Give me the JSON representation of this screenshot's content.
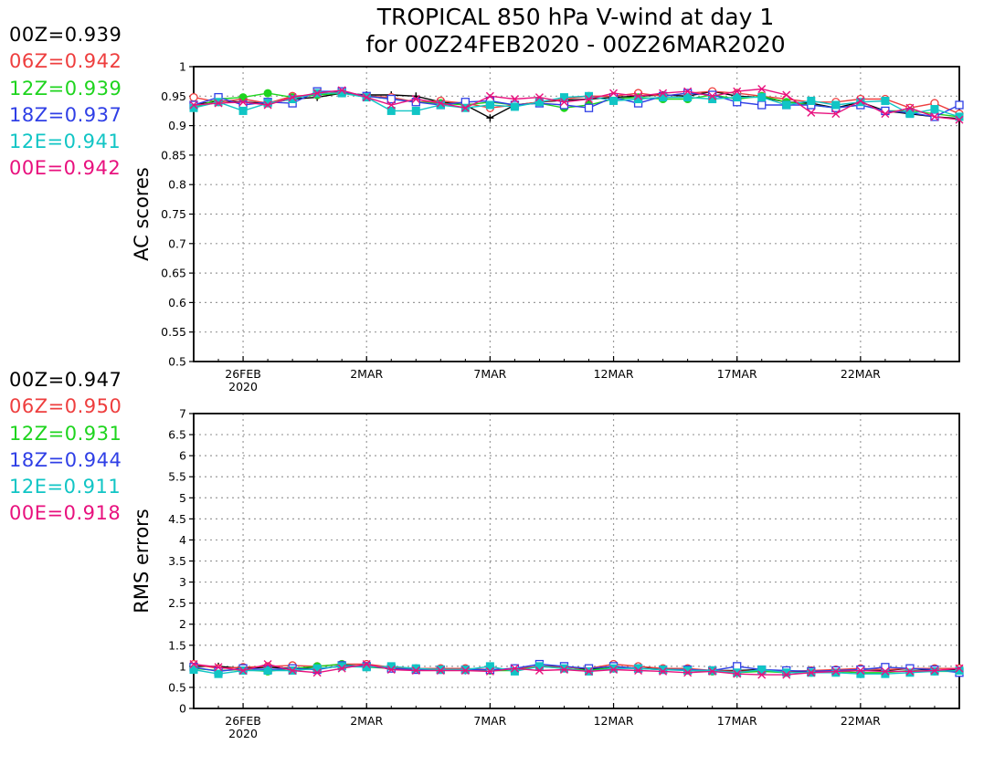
{
  "chart_data": [
    {
      "type": "line",
      "title": "TROPICAL 850 hPa V-wind at day 1",
      "subtitle": "for 00Z24FEB2020 - 00Z26MAR2020",
      "xlabel": "",
      "ylabel": "AC scores",
      "ylim": [
        0.5,
        1
      ],
      "yticks": [
        "0.5",
        "0.55",
        "0.6",
        "0.65",
        "0.7",
        "0.75",
        "0.8",
        "0.85",
        "0.9",
        "0.95",
        "1"
      ],
      "xlim": [
        "2020-02-24",
        "2020-03-26"
      ],
      "xticks": [
        {
          "date": "2020-02-26",
          "label": "26FEB",
          "sublabel": "2020"
        },
        {
          "date": "2020-03-02",
          "label": "2MAR",
          "sublabel": ""
        },
        {
          "date": "2020-03-07",
          "label": "7MAR",
          "sublabel": ""
        },
        {
          "date": "2020-03-12",
          "label": "12MAR",
          "sublabel": ""
        },
        {
          "date": "2020-03-17",
          "label": "17MAR",
          "sublabel": ""
        },
        {
          "date": "2020-03-22",
          "label": "22MAR",
          "sublabel": ""
        }
      ],
      "grid": true,
      "x": [
        "2020-02-24",
        "2020-02-25",
        "2020-02-26",
        "2020-02-27",
        "2020-02-28",
        "2020-02-29",
        "2020-03-01",
        "2020-03-02",
        "2020-03-03",
        "2020-03-04",
        "2020-03-05",
        "2020-03-06",
        "2020-03-07",
        "2020-03-08",
        "2020-03-09",
        "2020-03-10",
        "2020-03-11",
        "2020-03-12",
        "2020-03-13",
        "2020-03-14",
        "2020-03-15",
        "2020-03-16",
        "2020-03-17",
        "2020-03-18",
        "2020-03-19",
        "2020-03-20",
        "2020-03-21",
        "2020-03-22",
        "2020-03-23",
        "2020-03-24",
        "2020-03-25",
        "2020-03-26"
      ],
      "legend": [
        {
          "label": "00Z=0.939",
          "color": "#000000"
        },
        {
          "label": "06Z=0.942",
          "color": "#ee3e3e"
        },
        {
          "label": "12Z=0.939",
          "color": "#1ed41e"
        },
        {
          "label": "18Z=0.937",
          "color": "#2f3fe6"
        },
        {
          "label": "12E=0.941",
          "color": "#11c5c5"
        },
        {
          "label": "00E=0.942",
          "color": "#e8117e"
        }
      ],
      "series": [
        {
          "marker": "plus",
          "color": "#000000",
          "values": [
            0.935,
            0.942,
            0.94,
            0.938,
            0.945,
            0.948,
            0.955,
            0.952,
            0.952,
            0.95,
            0.94,
            0.935,
            0.913,
            0.935,
            0.94,
            0.943,
            0.945,
            0.948,
            0.95,
            0.952,
            0.95,
            0.958,
            0.95,
            0.948,
            0.94,
            0.938,
            0.93,
            0.94,
            0.925,
            0.92,
            0.915,
            0.912
          ]
        },
        {
          "marker": "circle",
          "color": "#ee3e3e",
          "values": [
            0.948,
            0.94,
            0.945,
            0.938,
            0.95,
            0.952,
            0.958,
            0.95,
            0.948,
            0.94,
            0.942,
            0.938,
            0.93,
            0.935,
            0.94,
            0.945,
            0.95,
            0.95,
            0.955,
            0.95,
            0.955,
            0.958,
            0.955,
            0.95,
            0.945,
            0.94,
            0.94,
            0.945,
            0.945,
            0.93,
            0.938,
            0.92
          ]
        },
        {
          "marker": "circle-filled",
          "color": "#1ed41e",
          "values": [
            0.93,
            0.945,
            0.948,
            0.955,
            0.948,
            0.952,
            0.955,
            0.95,
            0.945,
            0.94,
            0.938,
            0.935,
            0.94,
            0.935,
            0.938,
            0.93,
            0.935,
            0.945,
            0.948,
            0.945,
            0.945,
            0.952,
            0.945,
            0.95,
            0.94,
            0.935,
            0.93,
            0.935,
            0.925,
            0.925,
            0.92,
            0.915
          ]
        },
        {
          "marker": "square",
          "color": "#2f3fe6",
          "values": [
            0.935,
            0.948,
            0.935,
            0.94,
            0.938,
            0.958,
            0.958,
            0.95,
            0.945,
            0.94,
            0.935,
            0.94,
            0.942,
            0.935,
            0.938,
            0.935,
            0.93,
            0.948,
            0.938,
            0.95,
            0.955,
            0.952,
            0.94,
            0.935,
            0.935,
            0.935,
            0.93,
            0.935,
            0.925,
            0.922,
            0.915,
            0.935
          ]
        },
        {
          "marker": "square-filled",
          "color": "#11c5c5",
          "values": [
            0.93,
            0.94,
            0.925,
            0.938,
            0.945,
            0.955,
            0.955,
            0.948,
            0.925,
            0.925,
            0.935,
            0.93,
            0.935,
            0.932,
            0.94,
            0.948,
            0.95,
            0.942,
            0.945,
            0.948,
            0.948,
            0.945,
            0.948,
            0.948,
            0.935,
            0.942,
            0.935,
            0.94,
            0.942,
            0.92,
            0.928,
            0.915
          ]
        },
        {
          "marker": "x",
          "color": "#e8117e",
          "values": [
            0.935,
            0.938,
            0.94,
            0.935,
            0.948,
            0.955,
            0.96,
            0.948,
            0.935,
            0.945,
            0.938,
            0.93,
            0.95,
            0.945,
            0.948,
            0.94,
            0.945,
            0.955,
            0.95,
            0.955,
            0.958,
            0.95,
            0.958,
            0.962,
            0.952,
            0.922,
            0.92,
            0.942,
            0.92,
            0.93,
            0.915,
            0.91
          ]
        }
      ]
    },
    {
      "type": "line",
      "title": "",
      "xlabel": "",
      "ylabel": "RMS errors",
      "ylim": [
        0,
        7
      ],
      "yticks": [
        "0",
        "0.5",
        "1",
        "1.5",
        "2",
        "2.5",
        "3",
        "3.5",
        "4",
        "4.5",
        "5",
        "5.5",
        "6",
        "6.5",
        "7"
      ],
      "xlim": [
        "2020-02-24",
        "2020-03-26"
      ],
      "xticks": [
        {
          "date": "2020-02-26",
          "label": "26FEB",
          "sublabel": "2020"
        },
        {
          "date": "2020-03-02",
          "label": "2MAR",
          "sublabel": ""
        },
        {
          "date": "2020-03-07",
          "label": "7MAR",
          "sublabel": ""
        },
        {
          "date": "2020-03-12",
          "label": "12MAR",
          "sublabel": ""
        },
        {
          "date": "2020-03-17",
          "label": "17MAR",
          "sublabel": ""
        },
        {
          "date": "2020-03-22",
          "label": "22MAR",
          "sublabel": ""
        }
      ],
      "grid": true,
      "x": [
        "2020-02-24",
        "2020-02-25",
        "2020-02-26",
        "2020-02-27",
        "2020-02-28",
        "2020-02-29",
        "2020-03-01",
        "2020-03-02",
        "2020-03-03",
        "2020-03-04",
        "2020-03-05",
        "2020-03-06",
        "2020-03-07",
        "2020-03-08",
        "2020-03-09",
        "2020-03-10",
        "2020-03-11",
        "2020-03-12",
        "2020-03-13",
        "2020-03-14",
        "2020-03-15",
        "2020-03-16",
        "2020-03-17",
        "2020-03-18",
        "2020-03-19",
        "2020-03-20",
        "2020-03-21",
        "2020-03-22",
        "2020-03-23",
        "2020-03-24",
        "2020-03-25",
        "2020-03-26"
      ],
      "legend": [
        {
          "label": "00Z=0.947",
          "color": "#000000"
        },
        {
          "label": "06Z=0.950",
          "color": "#ee3e3e"
        },
        {
          "label": "12Z=0.931",
          "color": "#1ed41e"
        },
        {
          "label": "18Z=0.944",
          "color": "#2f3fe6"
        },
        {
          "label": "12E=0.911",
          "color": "#11c5c5"
        },
        {
          "label": "00E=0.918",
          "color": "#e8117e"
        }
      ],
      "series": [
        {
          "marker": "plus",
          "color": "#000000",
          "values": [
            1.0,
            1.0,
            0.95,
            0.98,
            0.95,
            0.95,
            1.0,
            1.0,
            0.95,
            0.92,
            0.92,
            0.9,
            0.92,
            0.92,
            1.0,
            1.0,
            0.92,
            1.0,
            0.95,
            0.95,
            0.9,
            0.9,
            0.9,
            0.92,
            0.88,
            0.88,
            0.9,
            0.9,
            0.9,
            0.95,
            0.9,
            0.92
          ]
        },
        {
          "marker": "circle",
          "color": "#ee3e3e",
          "values": [
            1.05,
            0.95,
            0.98,
            1.0,
            1.02,
            1.0,
            1.05,
            1.05,
            0.98,
            0.95,
            0.95,
            0.95,
            0.92,
            0.95,
            1.0,
            0.98,
            0.95,
            1.05,
            1.0,
            0.95,
            0.95,
            0.9,
            0.88,
            0.9,
            0.88,
            0.9,
            0.92,
            0.95,
            0.92,
            0.95,
            0.95,
            0.95
          ]
        },
        {
          "marker": "circle-filled",
          "color": "#1ed41e",
          "values": [
            0.95,
            0.9,
            0.92,
            0.88,
            0.95,
            1.0,
            1.05,
            0.98,
            0.95,
            0.92,
            0.92,
            0.92,
            0.9,
            0.9,
            1.0,
            0.95,
            0.9,
            0.98,
            0.95,
            0.92,
            0.92,
            0.88,
            0.85,
            0.88,
            0.85,
            0.85,
            0.88,
            0.85,
            0.85,
            0.9,
            0.88,
            0.88
          ]
        },
        {
          "marker": "square",
          "color": "#2f3fe6",
          "values": [
            0.98,
            0.88,
            0.95,
            0.92,
            0.95,
            0.92,
            1.02,
            1.0,
            0.95,
            0.92,
            0.92,
            0.92,
            0.92,
            0.95,
            1.05,
            1.0,
            0.95,
            1.0,
            0.95,
            0.92,
            0.92,
            0.9,
            1.0,
            0.92,
            0.9,
            0.88,
            0.9,
            0.92,
            0.98,
            0.95,
            0.92,
            0.85
          ]
        },
        {
          "marker": "square-filled",
          "color": "#11c5c5",
          "values": [
            0.92,
            0.82,
            0.9,
            0.9,
            0.9,
            0.95,
            1.0,
            0.98,
            1.0,
            0.95,
            0.92,
            0.92,
            1.0,
            0.88,
            1.0,
            0.95,
            0.88,
            0.95,
            0.95,
            0.92,
            0.9,
            0.9,
            0.85,
            0.92,
            0.85,
            0.85,
            0.85,
            0.82,
            0.82,
            0.85,
            0.88,
            0.9
          ]
        },
        {
          "marker": "x",
          "color": "#e8117e",
          "values": [
            1.05,
            0.98,
            0.9,
            1.05,
            0.9,
            0.85,
            0.95,
            1.05,
            0.92,
            0.9,
            0.9,
            0.9,
            0.88,
            0.95,
            0.9,
            0.92,
            0.88,
            0.92,
            0.9,
            0.88,
            0.85,
            0.88,
            0.82,
            0.8,
            0.8,
            0.85,
            0.88,
            0.9,
            0.88,
            0.88,
            0.9,
            0.95
          ]
        }
      ]
    }
  ]
}
